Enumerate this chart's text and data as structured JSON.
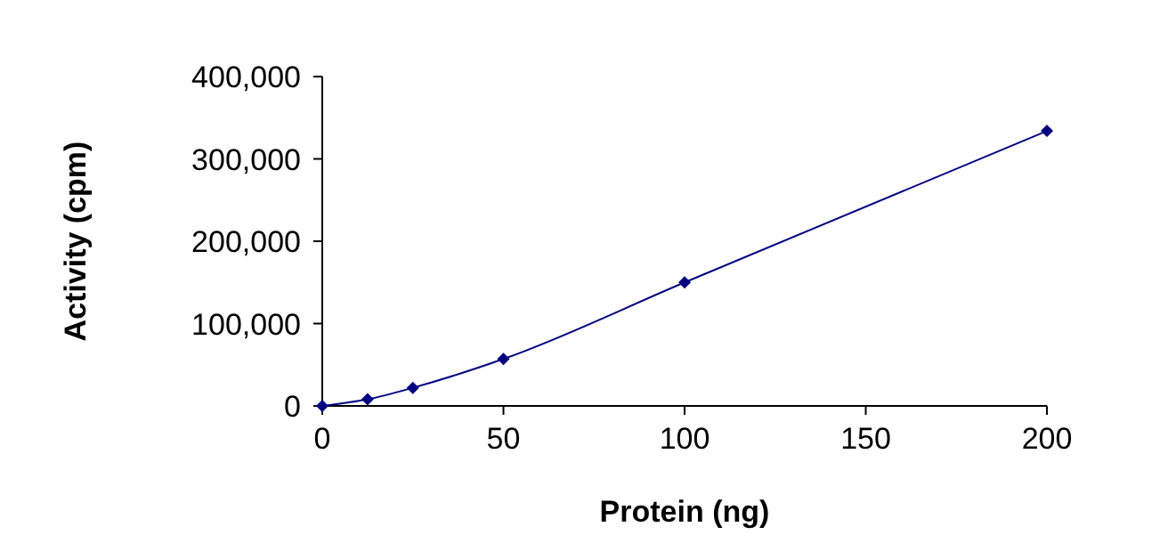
{
  "chart_data": {
    "type": "line",
    "xlabel": "Protein (ng)",
    "ylabel": "Activity (cpm)",
    "x": [
      0,
      12.5,
      25,
      50,
      100,
      200
    ],
    "series": [
      {
        "color": "#000080",
        "values": [
          0,
          8000,
          22000,
          57000,
          150000,
          334000
        ]
      }
    ],
    "xlim": [
      0,
      200
    ],
    "xticks": [
      0,
      50,
      100,
      150,
      200
    ],
    "ylim": [
      0,
      400000
    ],
    "yticks": [
      {
        "value": 0,
        "label": "0"
      },
      {
        "value": 100000,
        "label": "100,000"
      },
      {
        "value": 200000,
        "label": "200,000"
      },
      {
        "value": 300000,
        "label": "300,000"
      },
      {
        "value": 400000,
        "label": "400,000"
      }
    ],
    "marker": "diamond",
    "line_style": "solid",
    "grid": false
  }
}
